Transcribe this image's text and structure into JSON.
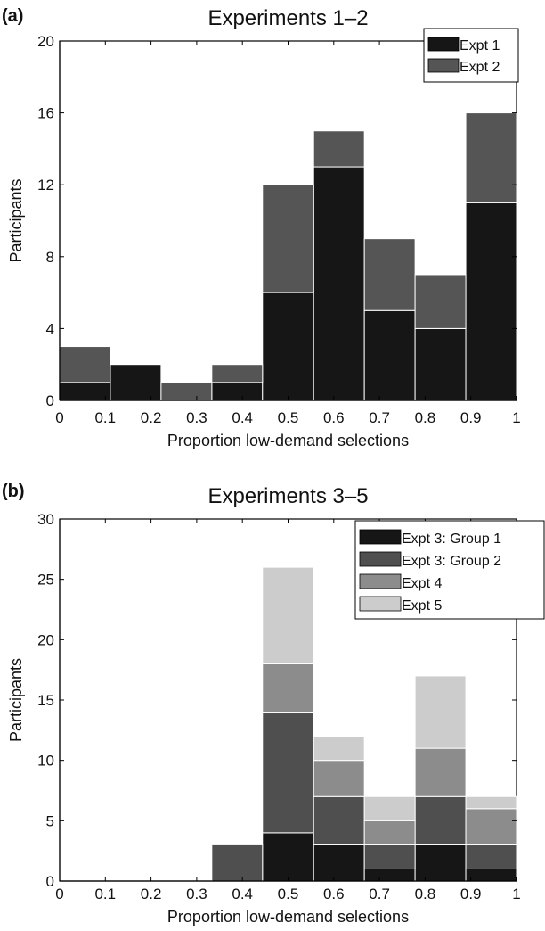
{
  "chart_data": [
    {
      "panel_label": "(a)",
      "type": "bar",
      "stacked": true,
      "title": "Experiments 1–2",
      "xlabel": "Proportion low-demand selections",
      "ylabel": "Participants",
      "xlim": [
        0,
        1
      ],
      "ylim": [
        0,
        20
      ],
      "xticks": [
        "0",
        "0.1",
        "0.2",
        "0.3",
        "0.4",
        "0.5",
        "0.6",
        "0.7",
        "0.8",
        "0.9",
        "1"
      ],
      "yticks": [
        "0",
        "4",
        "8",
        "12",
        "16",
        "20"
      ],
      "bin_edges": [
        0,
        0.111,
        0.222,
        0.333,
        0.444,
        0.556,
        0.667,
        0.778,
        0.889,
        1
      ],
      "legend_position": "top-right",
      "series": [
        {
          "name": "Expt 1",
          "color": "#161616",
          "values": [
            1,
            2,
            0,
            1,
            6,
            13,
            5,
            4,
            11
          ]
        },
        {
          "name": "Expt 2",
          "color": "#555555",
          "values": [
            2,
            0,
            1,
            1,
            6,
            2,
            4,
            3,
            5
          ]
        }
      ]
    },
    {
      "panel_label": "(b)",
      "type": "bar",
      "stacked": true,
      "title": "Experiments 3–5",
      "xlabel": "Proportion low-demand selections",
      "ylabel": "Participants",
      "xlim": [
        0,
        1
      ],
      "ylim": [
        0,
        30
      ],
      "xticks": [
        "0",
        "0.1",
        "0.2",
        "0.3",
        "0.4",
        "0.5",
        "0.6",
        "0.7",
        "0.8",
        "0.9",
        "1"
      ],
      "yticks": [
        "0",
        "5",
        "10",
        "15",
        "20",
        "25",
        "30"
      ],
      "bin_edges": [
        0,
        0.111,
        0.222,
        0.333,
        0.444,
        0.556,
        0.667,
        0.778,
        0.889,
        1
      ],
      "legend_position": "top-right",
      "series": [
        {
          "name": "Expt 3: Group 1",
          "color": "#161616",
          "values": [
            0,
            0,
            0,
            0,
            4,
            3,
            1,
            3,
            1
          ]
        },
        {
          "name": "Expt 3: Group 2",
          "color": "#4f4f4f",
          "values": [
            0,
            0,
            0,
            3,
            10,
            4,
            2,
            4,
            2
          ]
        },
        {
          "name": "Expt 4",
          "color": "#8c8c8c",
          "values": [
            0,
            0,
            0,
            0,
            4,
            3,
            2,
            4,
            3
          ]
        },
        {
          "name": "Expt 5",
          "color": "#cccccc",
          "values": [
            0,
            0,
            0,
            0,
            8,
            2,
            2,
            6,
            1
          ]
        }
      ]
    }
  ]
}
